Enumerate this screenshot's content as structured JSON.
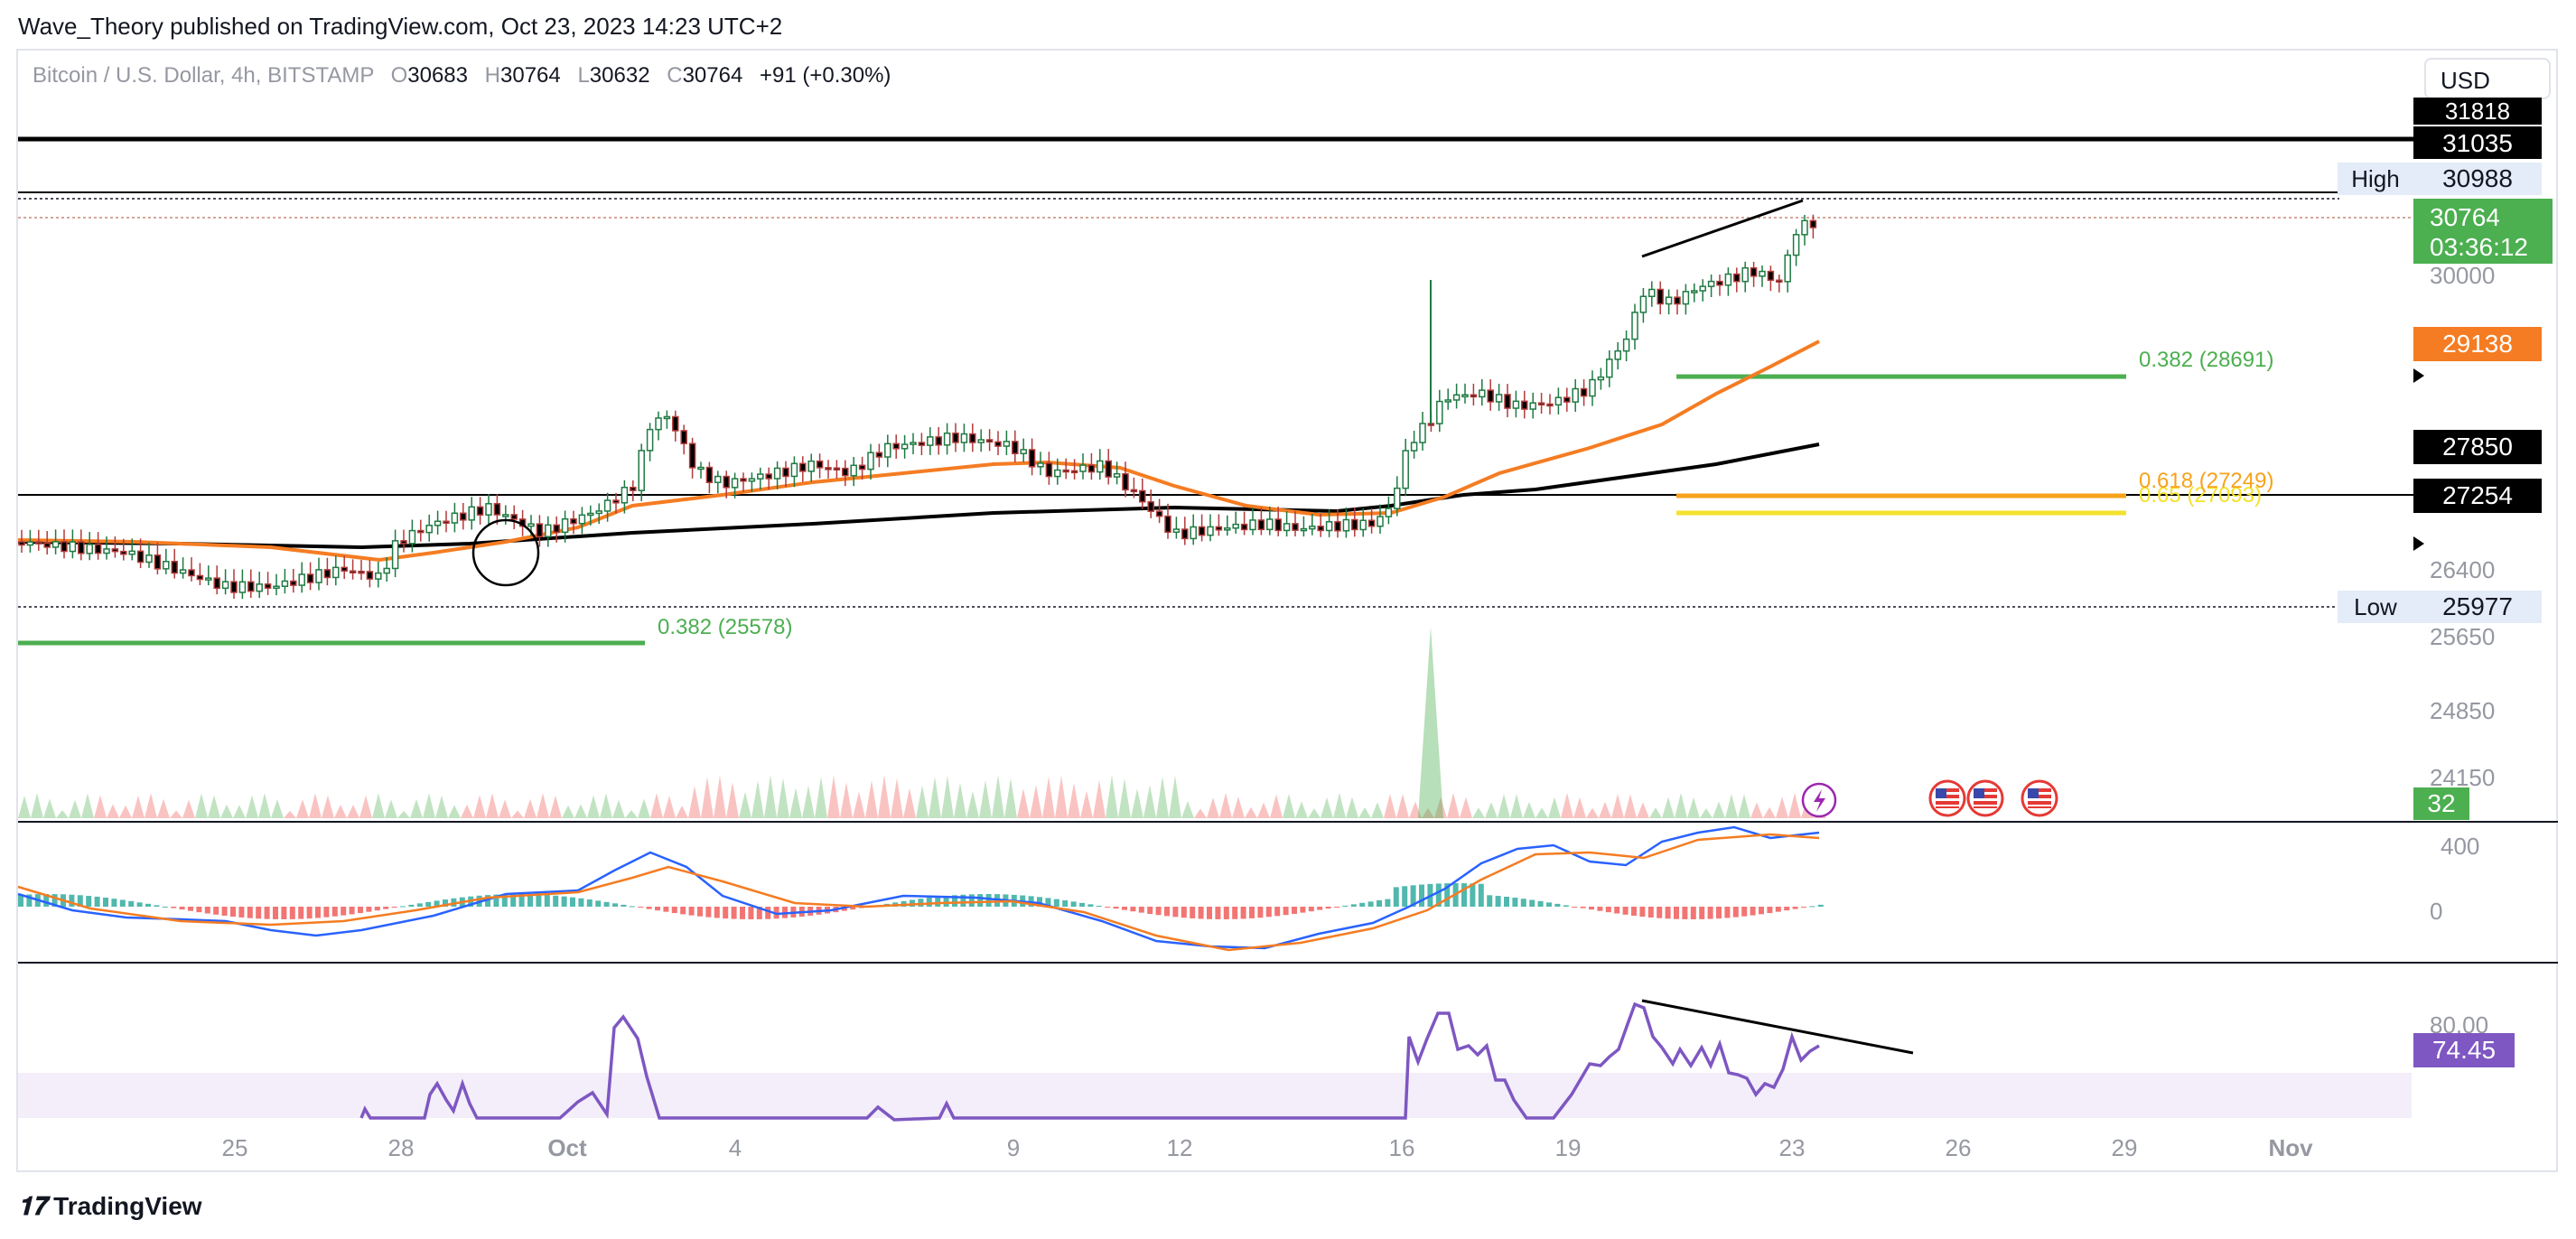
{
  "header": {
    "publisher": "Wave_Theory published on TradingView.com, Oct 23, 2023 14:23 UTC+2",
    "symbol": "Bitcoin / U.S. Dollar, 4h, BITSTAMP",
    "ohlc": {
      "o_label": "O",
      "o": "30683",
      "h_label": "H",
      "h": "30764",
      "l_label": "L",
      "l": "30632",
      "c_label": "C",
      "c": "30764",
      "change": "+91 (+0.30%)"
    },
    "currency": "USD"
  },
  "footer": {
    "brand": "TradingView",
    "logo_icon": "tradingview-logo-icon"
  },
  "chart_data": [
    {
      "type": "candlestick",
      "panel": "price",
      "x_tick_labels": [
        "25",
        "28",
        "Oct",
        "4",
        "9",
        "12",
        "16",
        "19",
        "23",
        "26",
        "29",
        "Nov"
      ],
      "y_tick_labels": [
        "30000",
        "26400",
        "25650",
        "24850",
        "24150"
      ],
      "price_labels": [
        {
          "text": "31818",
          "bg": "#000000",
          "fg": "#ffffff"
        },
        {
          "text": "31035",
          "bg": "#000000",
          "fg": "#ffffff"
        },
        {
          "prefix": "High",
          "text": "30988",
          "bg": "#e3ecf8",
          "fg": "#131722"
        },
        {
          "text": "30764",
          "sub": "03:36:12",
          "bg": "#4caf50",
          "fg": "#ffffff"
        },
        {
          "text": "29138",
          "bg": "#f57c22",
          "fg": "#ffffff"
        },
        {
          "text": "27850",
          "bg": "#000000",
          "fg": "#ffffff"
        },
        {
          "text": "27254",
          "bg": "#000000",
          "fg": "#ffffff"
        },
        {
          "prefix": "Low",
          "text": "25977",
          "bg": "#e3ecf8",
          "fg": "#131722"
        }
      ],
      "fib_labels": [
        {
          "text": "0.382 (28691)",
          "color": "#4caf50"
        },
        {
          "text": "0.618 (27249)",
          "color": "#f7a21b"
        },
        {
          "text": "0.65 (27093)",
          "color": "#f5e12b"
        },
        {
          "text": "0.382 (25578)",
          "color": "#4caf50"
        }
      ],
      "horizontal_lines": [
        31818,
        31035,
        27254
      ],
      "ema_50_last": 29138,
      "ema_200_last": 27850,
      "colors": {
        "up": "#26a69a",
        "down": "#ef5350",
        "ema50": "#f57c22",
        "ema200": "#000000"
      }
    },
    {
      "type": "area",
      "panel": "volume",
      "label": "32",
      "label_bg": "#4caf50",
      "event_icons": [
        "lightning-icon",
        "us-flag-icon",
        "us-flag-icon",
        "us-flag-icon"
      ]
    },
    {
      "type": "bar+line",
      "panel": "macd",
      "y_tick_labels": [
        "400",
        "0"
      ]
    },
    {
      "type": "line",
      "panel": "rsi",
      "y_tick_labels": [
        "80.00"
      ],
      "label": "74.45",
      "label_bg": "#7e57c2"
    }
  ]
}
